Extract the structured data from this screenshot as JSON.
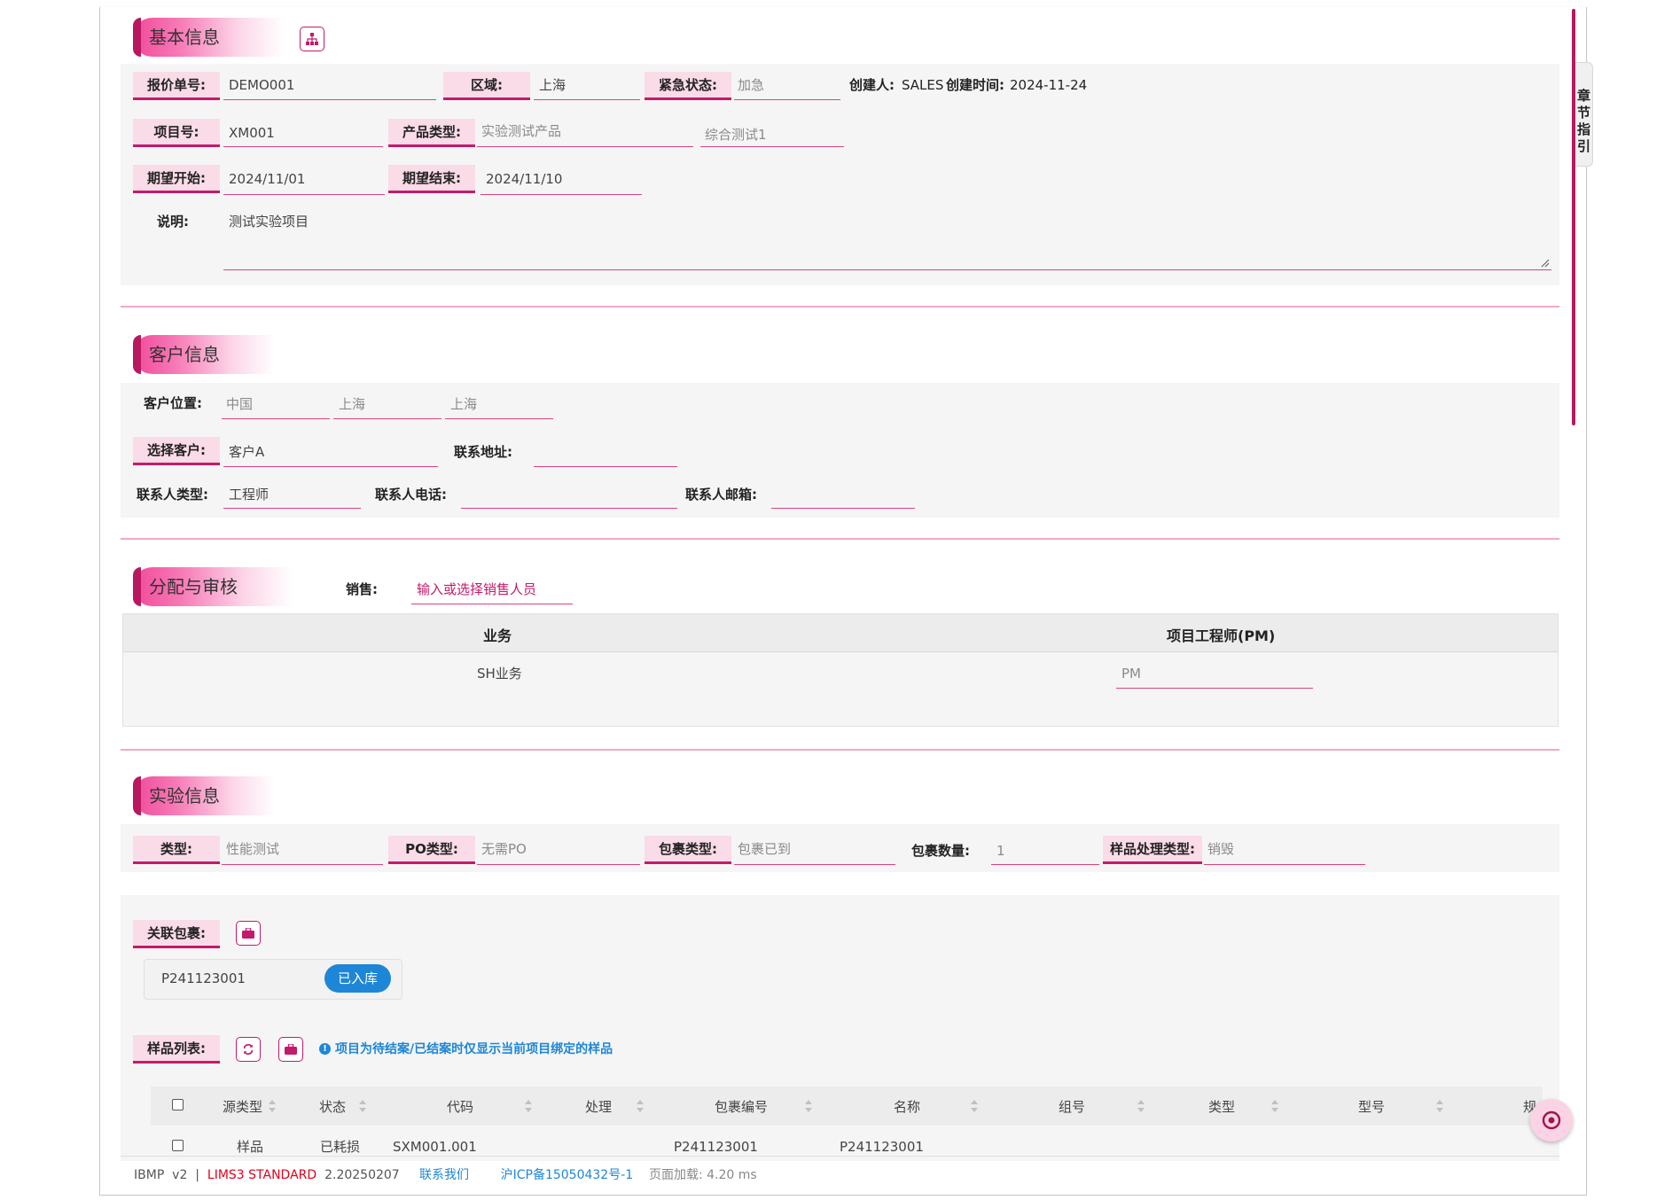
{
  "basic": {
    "title": "基本信息",
    "quote_no_label": "报价单号:",
    "quote_no": "DEMO001",
    "region_label": "区域:",
    "region": "上海",
    "urgency_label": "紧急状态:",
    "urgency": "加急",
    "creator_label": "创建人:",
    "creator": "SALES",
    "created_label": "创建时间:",
    "created": "2024-11-24",
    "project_no_label": "项目号:",
    "project_no": "XM001",
    "product_type_label": "产品类型:",
    "product_type": "实验测试产品",
    "product_subtype": "综合测试1",
    "start_label": "期望开始:",
    "start": "2024/11/01",
    "end_label": "期望结束:",
    "end": "2024/11/10",
    "desc_label": "说明:",
    "desc": "测试实验项目"
  },
  "customer": {
    "title": "客户信息",
    "location_label": "客户位置:",
    "country": "中国",
    "province": "上海",
    "city": "上海",
    "select_label": "选择客户:",
    "customer": "客户A",
    "address_label": "联系地址:",
    "address": "",
    "contact_type_label": "联系人类型:",
    "contact_type": "工程师",
    "phone_label": "联系人电话:",
    "phone": "",
    "email_label": "联系人邮箱:",
    "email": ""
  },
  "assign": {
    "title": "分配与审核",
    "sales_label": "销售:",
    "sales_placeholder": "输入或选择销售人员",
    "col_business": "业务",
    "col_pm": "项目工程师(PM)",
    "business": "SH业务",
    "pm_placeholder": "PM"
  },
  "experiment": {
    "title": "实验信息",
    "type_label": "类型:",
    "type": "性能测试",
    "po_label": "PO类型:",
    "po": "无需PO",
    "pkg_type_label": "包裹类型:",
    "pkg_type": "包裹已到",
    "pkg_count_label": "包裹数量:",
    "pkg_count": "1",
    "sample_proc_label": "样品处理类型:",
    "sample_proc": "销毁",
    "linked_pkg_label": "关联包裹:",
    "pkg_code": "P241123001",
    "pkg_status": "已入库",
    "sample_list_label": "样品列表:",
    "notice": "项目为待结案/已结案时仅显示当前项目绑定的样品",
    "columns": [
      "源类型",
      "状态",
      "代码",
      "处理",
      "包裹编号",
      "名称",
      "组号",
      "类型",
      "型号",
      "规"
    ],
    "row": {
      "src": "样品",
      "status": "已耗损",
      "code": "SXM001.001",
      "pkg": "P241123001",
      "name": "P241123001"
    }
  },
  "side_nav": "章节指引",
  "footer": {
    "app": "IBMP",
    "version": "v2",
    "sep": "|",
    "product": "LIMS3 STANDARD",
    "build": "2.20250207",
    "contact": "联系我们",
    "icp": "沪ICP备15050432号-1",
    "load_label": "页面加载:",
    "load_value": "4.20 ms"
  },
  "colors": {
    "accent": "#c41a6b",
    "pink_light": "#fadbe8",
    "link": "#1e86d6"
  }
}
